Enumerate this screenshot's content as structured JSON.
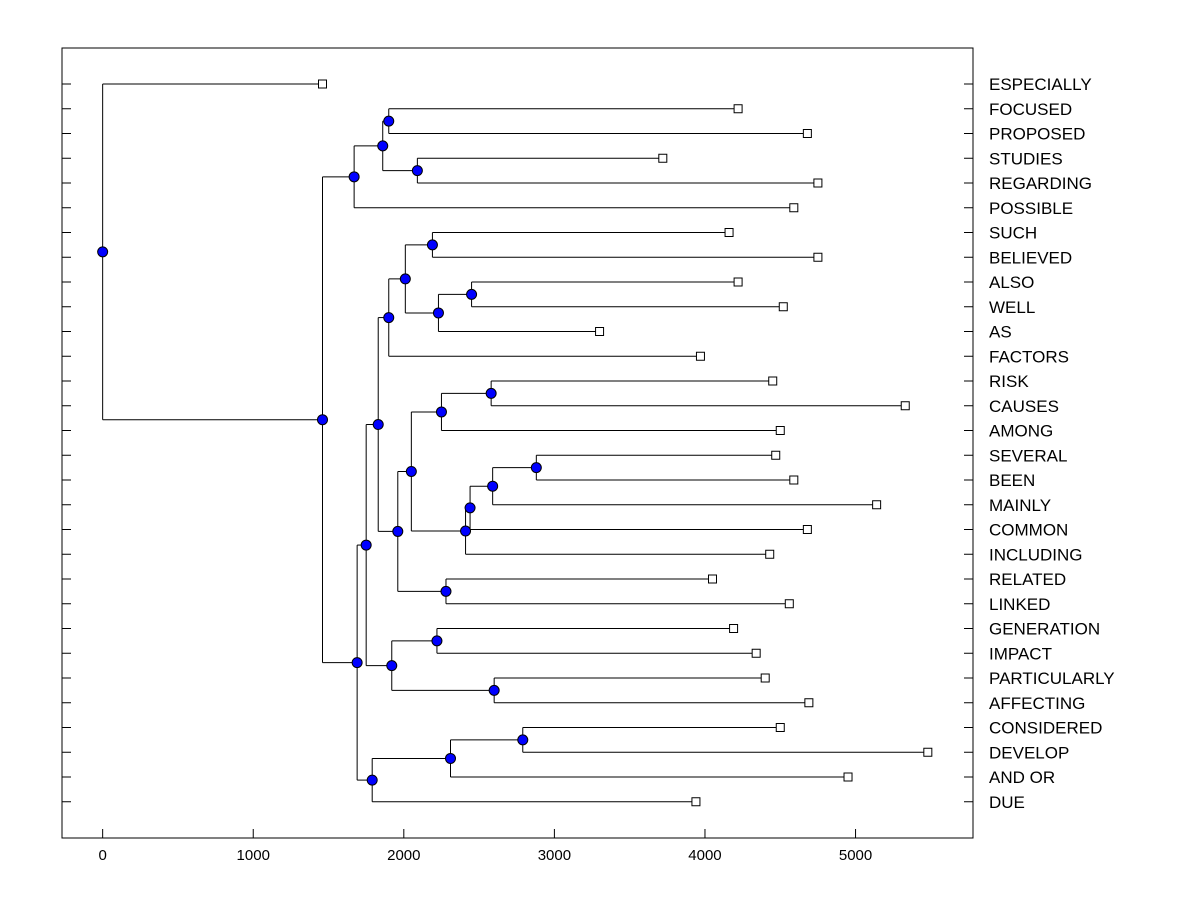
{
  "chart_data": {
    "type": "dendrogram",
    "title": "",
    "xlabel": "",
    "ylabel": "",
    "xlim": [
      -270,
      5780
    ],
    "x_ticks": [
      0,
      1000,
      2000,
      3000,
      4000,
      5000
    ],
    "x_tick_labels": [
      "0",
      "1000",
      "2000",
      "3000",
      "4000",
      "5000"
    ],
    "grid": false,
    "colors": {
      "node": "#0000ff",
      "line": "#000000",
      "leaf_fill": "#ffffff"
    },
    "leaves": [
      {
        "label": "ESPECIALLY",
        "value": 1460
      },
      {
        "label": "FOCUSED",
        "value": 4220
      },
      {
        "label": "PROPOSED",
        "value": 4680
      },
      {
        "label": "STUDIES",
        "value": 3720
      },
      {
        "label": "REGARDING",
        "value": 4750
      },
      {
        "label": "POSSIBLE",
        "value": 4590
      },
      {
        "label": "SUCH",
        "value": 4160
      },
      {
        "label": "BELIEVED",
        "value": 4750
      },
      {
        "label": "ALSO",
        "value": 4220
      },
      {
        "label": "WELL",
        "value": 4520
      },
      {
        "label": "AS",
        "value": 3300
      },
      {
        "label": "FACTORS",
        "value": 3970
      },
      {
        "label": "RISK",
        "value": 4450
      },
      {
        "label": "CAUSES",
        "value": 5330
      },
      {
        "label": "AMONG",
        "value": 4500
      },
      {
        "label": "SEVERAL",
        "value": 4470
      },
      {
        "label": "BEEN",
        "value": 4590
      },
      {
        "label": "MAINLY",
        "value": 5140
      },
      {
        "label": "COMMON",
        "value": 4680
      },
      {
        "label": "INCLUDING",
        "value": 4430
      },
      {
        "label": "RELATED",
        "value": 4050
      },
      {
        "label": "LINKED",
        "value": 4560
      },
      {
        "label": "GENERATION",
        "value": 4190
      },
      {
        "label": "IMPACT",
        "value": 4340
      },
      {
        "label": "PARTICULARLY",
        "value": 4400
      },
      {
        "label": "AFFECTING",
        "value": 4690
      },
      {
        "label": "CONSIDERED",
        "value": 4500
      },
      {
        "label": "DEVELOP",
        "value": 5480
      },
      {
        "label": "AND OR",
        "value": 4950
      },
      {
        "label": "DUE",
        "value": 3940
      }
    ],
    "nodes": [
      {
        "id": "n1",
        "value": 1900,
        "children": [
          1,
          2
        ]
      },
      {
        "id": "n2",
        "value": 2090,
        "children": [
          3,
          4
        ]
      },
      {
        "id": "n3",
        "value": 1860,
        "children": [
          "n1",
          "n2"
        ]
      },
      {
        "id": "n4",
        "value": 1670,
        "children": [
          "n3",
          5
        ]
      },
      {
        "id": "n5",
        "value": 2190,
        "children": [
          6,
          7
        ]
      },
      {
        "id": "n6",
        "value": 2450,
        "children": [
          8,
          9
        ]
      },
      {
        "id": "n7",
        "value": 2230,
        "children": [
          "n6",
          10
        ]
      },
      {
        "id": "n8",
        "value": 2010,
        "children": [
          "n5",
          "n7"
        ]
      },
      {
        "id": "n9",
        "value": 1900,
        "children": [
          "n8",
          11
        ]
      },
      {
        "id": "n10",
        "value": 2580,
        "children": [
          12,
          13
        ]
      },
      {
        "id": "n11",
        "value": 2250,
        "children": [
          "n10",
          14
        ]
      },
      {
        "id": "n12",
        "value": 2880,
        "children": [
          15,
          16
        ]
      },
      {
        "id": "n13",
        "value": 2590,
        "children": [
          "n12",
          17
        ]
      },
      {
        "id": "n14",
        "value": 2440,
        "children": [
          "n13",
          18
        ]
      },
      {
        "id": "n15",
        "value": 2410,
        "children": [
          "n14",
          19
        ]
      },
      {
        "id": "n16",
        "value": 2050,
        "children": [
          "n11",
          "n15"
        ]
      },
      {
        "id": "n17",
        "value": 2280,
        "children": [
          20,
          21
        ]
      },
      {
        "id": "n18",
        "value": 1960,
        "children": [
          "n16",
          "n17"
        ]
      },
      {
        "id": "n19",
        "value": 1830,
        "children": [
          "n9",
          "n18"
        ]
      },
      {
        "id": "n20",
        "value": 2220,
        "children": [
          22,
          23
        ]
      },
      {
        "id": "n21",
        "value": 2600,
        "children": [
          24,
          25
        ]
      },
      {
        "id": "n22",
        "value": 1920,
        "children": [
          "n20",
          "n21"
        ]
      },
      {
        "id": "n23",
        "value": 1750,
        "children": [
          "n19",
          "n22"
        ]
      },
      {
        "id": "n24",
        "value": 2790,
        "children": [
          26,
          27
        ]
      },
      {
        "id": "n25",
        "value": 2310,
        "children": [
          "n24",
          28
        ]
      },
      {
        "id": "n26",
        "value": 1790,
        "children": [
          "n25",
          29
        ]
      },
      {
        "id": "n27",
        "value": 1690,
        "children": [
          "n23",
          "n26"
        ]
      },
      {
        "id": "n28",
        "value": 1460,
        "children": [
          "n4",
          "n27"
        ]
      },
      {
        "id": "root",
        "value": 0,
        "children": [
          0,
          "n28"
        ]
      }
    ]
  }
}
